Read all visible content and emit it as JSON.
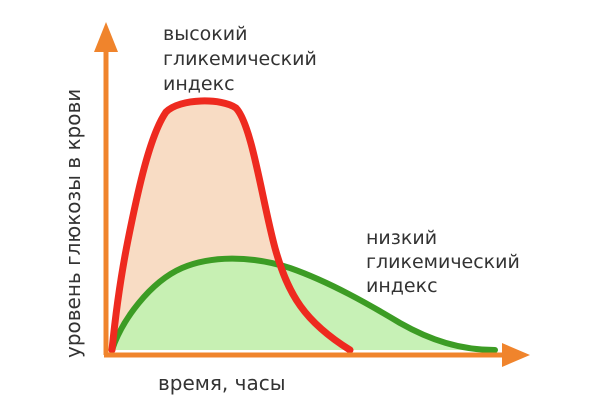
{
  "diagram": {
    "y_axis_label": "уровень глюкозы в крови",
    "x_axis_label": "время, часы",
    "curves": [
      {
        "id": "high_gi",
        "label_lines": [
          "высокий",
          "гликемический",
          "индекс"
        ],
        "line_color": "#ee2a1f",
        "fill_color": "#f8dcc4"
      },
      {
        "id": "low_gi",
        "label_lines": [
          "низкий",
          "гликемический",
          "индекс"
        ],
        "line_color": "#3c9c24",
        "fill_color": "#c4f0b2"
      }
    ],
    "axis_color": "#f0842c"
  }
}
